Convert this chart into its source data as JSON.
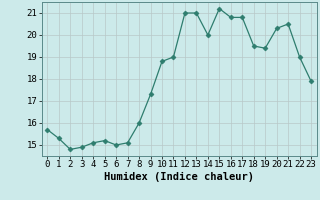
{
  "x": [
    0,
    1,
    2,
    3,
    4,
    5,
    6,
    7,
    8,
    9,
    10,
    11,
    12,
    13,
    14,
    15,
    16,
    17,
    18,
    19,
    20,
    21,
    22,
    23
  ],
  "y": [
    15.7,
    15.3,
    14.8,
    14.9,
    15.1,
    15.2,
    15.0,
    15.1,
    16.0,
    17.3,
    18.8,
    19.0,
    21.0,
    21.0,
    20.0,
    21.2,
    20.8,
    20.8,
    19.5,
    19.4,
    20.3,
    20.5,
    19.0,
    17.9
  ],
  "line_color": "#2e7d6e",
  "marker": "D",
  "marker_size": 2.5,
  "bg_color": "#cceaea",
  "grid_color": "#b8c8c8",
  "xlabel": "Humidex (Indice chaleur)",
  "ylim": [
    14.5,
    21.5
  ],
  "xlim": [
    -0.5,
    23.5
  ],
  "yticks": [
    15,
    16,
    17,
    18,
    19,
    20,
    21
  ],
  "xtick_labels": [
    "0",
    "1",
    "2",
    "3",
    "4",
    "5",
    "6",
    "7",
    "8",
    "9",
    "10",
    "11",
    "12",
    "13",
    "14",
    "15",
    "16",
    "17",
    "18",
    "19",
    "20",
    "21",
    "22",
    "23"
  ],
  "xlabel_fontsize": 7.5,
  "tick_fontsize": 6.5
}
